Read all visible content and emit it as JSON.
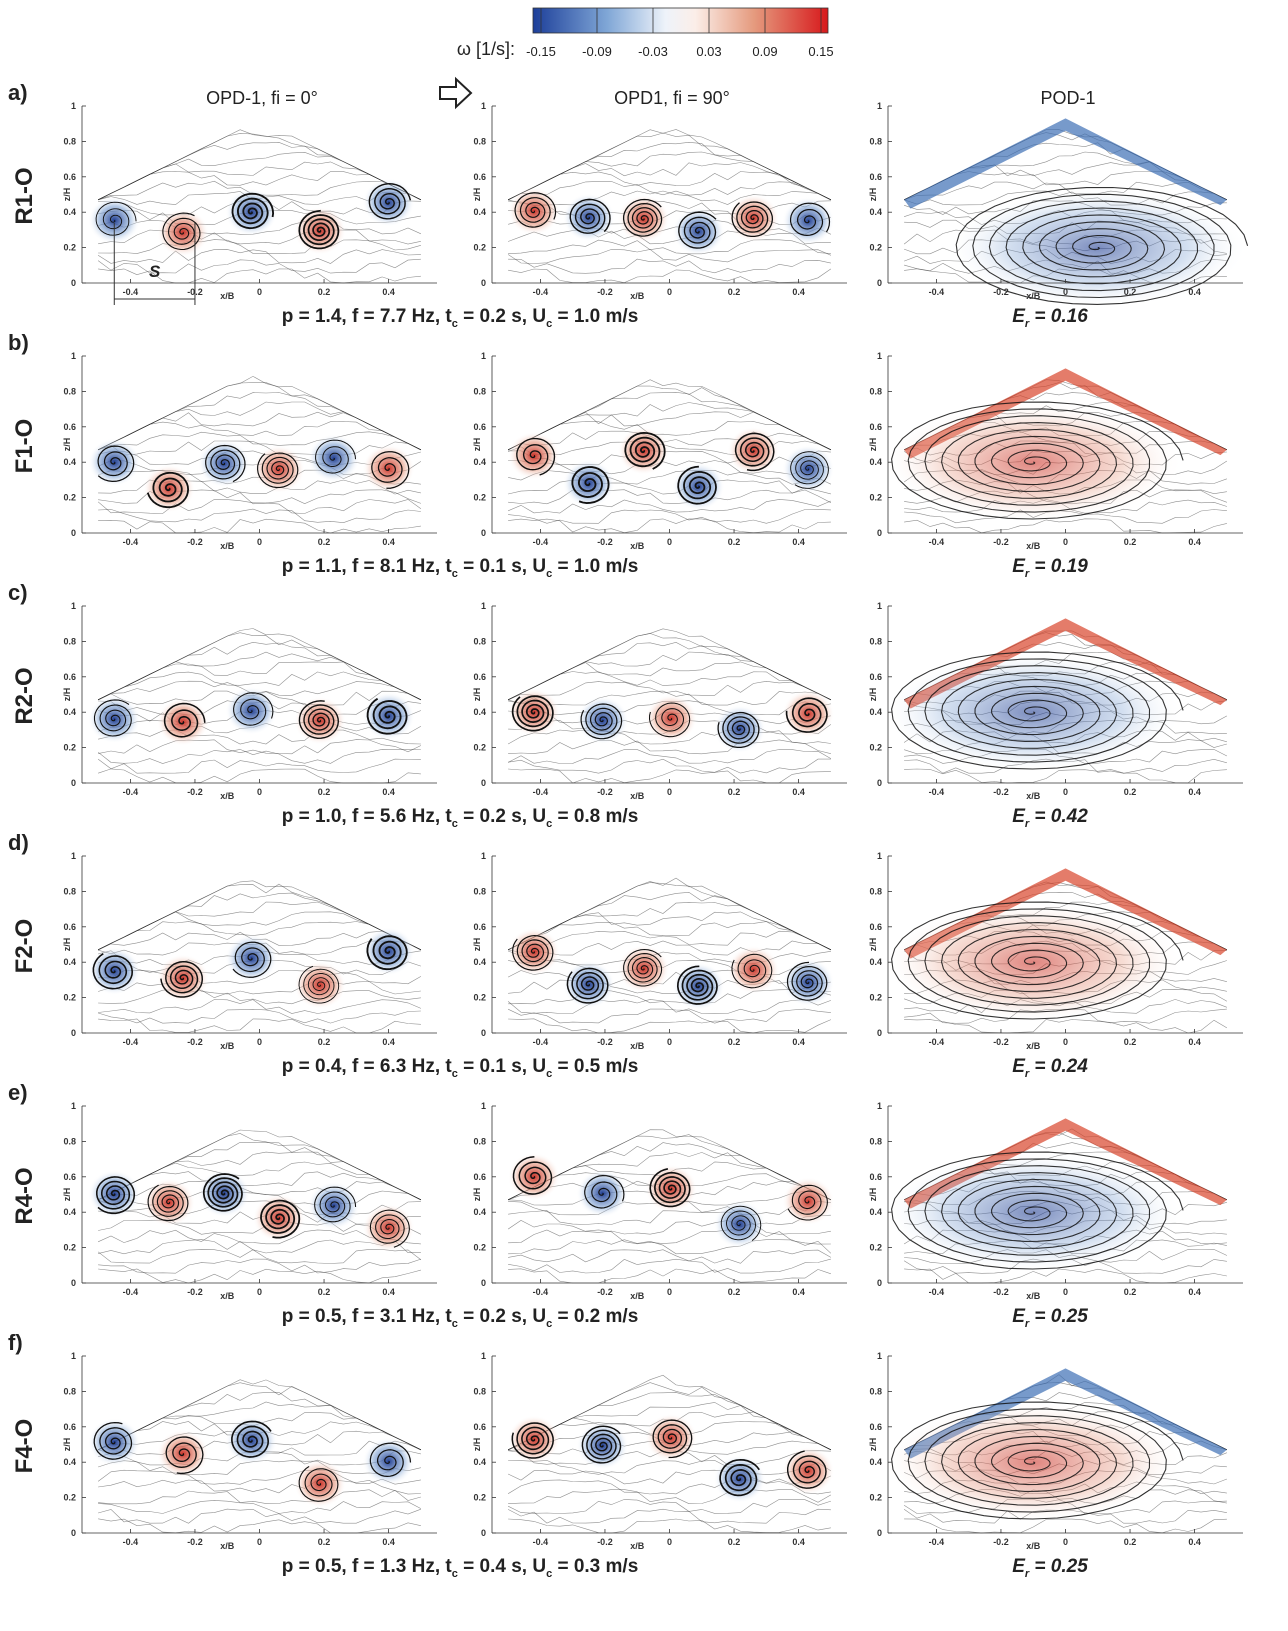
{
  "colorbar": {
    "label": "ω [1/s]:",
    "ticks": [
      -0.15,
      -0.09,
      -0.03,
      0.03,
      0.09,
      0.15
    ]
  },
  "columns": [
    "OPD-1, fi = 0°",
    "OPD1, fi = 90°",
    "POD-1"
  ],
  "axes": {
    "xlabel": "x/B",
    "ylabel": "z/H",
    "xticks": [
      -0.4,
      -0.2,
      0,
      0.2,
      0.4
    ],
    "yticks": [
      0,
      0.2,
      0.4,
      0.6,
      0.8,
      1
    ]
  },
  "annotation": "S",
  "rows": [
    {
      "panel": "a)",
      "label": "R1-O",
      "caption": [
        "p = 1.4, f = 7.7 Hz, t",
        "c",
        " = 0.2 s, U",
        "c",
        " = 1.0 m/s"
      ],
      "energy": [
        "E",
        "r",
        " = 0.16"
      ]
    },
    {
      "panel": "b)",
      "label": "F1-O",
      "caption": [
        "p = 1.1, f = 8.1 Hz, t",
        "c",
        " = 0.1 s, U",
        "c",
        " = 1.0 m/s"
      ],
      "energy": [
        "E",
        "r",
        " = 0.19"
      ]
    },
    {
      "panel": "c)",
      "label": "R2-O",
      "caption": [
        "p = 1.0, f = 5.6 Hz, t",
        "c",
        " = 0.2 s, U",
        "c",
        " = 0.8 m/s"
      ],
      "energy": [
        "E",
        "r",
        " = 0.42"
      ]
    },
    {
      "panel": "d)",
      "label": "F2-O",
      "caption": [
        "p = 0.4, f = 6.3 Hz, t",
        "c",
        " = 0.1 s, U",
        "c",
        " = 0.5 m/s"
      ],
      "energy": [
        "E",
        "r",
        " = 0.24"
      ]
    },
    {
      "panel": "e)",
      "label": "R4-O",
      "caption": [
        "p = 0.5, f = 3.1 Hz, t",
        "c",
        " = 0.2 s, U",
        "c",
        " = 0.2 m/s"
      ],
      "energy": [
        "E",
        "r",
        " = 0.25"
      ]
    },
    {
      "panel": "f)",
      "label": "F4-O",
      "caption": [
        "p = 0.5, f = 1.3 Hz, t",
        "c",
        " = 0.4 s, U",
        "c",
        " = 0.3 m/s"
      ],
      "energy": [
        "E",
        "r",
        " = 0.25"
      ]
    }
  ]
}
